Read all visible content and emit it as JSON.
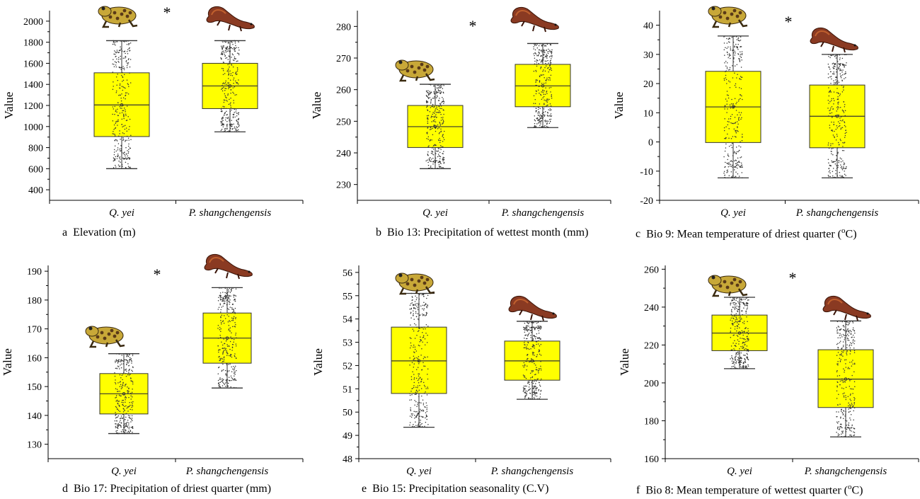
{
  "chart_data": [
    {
      "type": "box",
      "panel_letter": "a",
      "caption": "Elevation (m)",
      "caption_unit": "",
      "ylabel": "Value",
      "ylim": [
        300,
        2100
      ],
      "yticks": [
        "400",
        "600",
        "800",
        "1000",
        "1200",
        "1400",
        "1600",
        "1800",
        "2000"
      ],
      "significant": true,
      "significance_marker": "*",
      "categories": [
        "Q. yei",
        "P. shangchengensis"
      ],
      "boxes": [
        {
          "min": 600,
          "q1": 905,
          "median": 1205,
          "mean": 1205,
          "q3": 1510,
          "max": 1815,
          "icon": "frog-icon"
        },
        {
          "min": 950,
          "q1": 1170,
          "median": 1385,
          "mean": 1385,
          "q3": 1600,
          "max": 1815,
          "icon": "salamander-icon"
        }
      ]
    },
    {
      "type": "box",
      "panel_letter": "b",
      "caption": "Bio 13: Precipitation of wettest month (mm)",
      "caption_unit": "",
      "ylabel": "Value",
      "ylim": [
        225,
        285
      ],
      "yticks": [
        "230",
        "240",
        "250",
        "260",
        "270",
        "280"
      ],
      "significant": true,
      "significance_marker": "*",
      "categories": [
        "Q. yei",
        "P. shangchengensis"
      ],
      "boxes": [
        {
          "min": 235,
          "q1": 241.7,
          "median": 248.3,
          "mean": 248.3,
          "q3": 255,
          "max": 261.7,
          "icon": "frog-icon"
        },
        {
          "min": 248,
          "q1": 254.6,
          "median": 261.2,
          "mean": 261.2,
          "q3": 268,
          "max": 274.6,
          "icon": "salamander-icon"
        }
      ]
    },
    {
      "type": "box",
      "panel_letter": "c",
      "caption": "Bio 9: Mean temperature of driest quarter (",
      "caption_unit": "oC)",
      "ylabel": "Value",
      "ylim": [
        -20,
        45
      ],
      "yticks": [
        "-20",
        "-10",
        "0",
        "10",
        "20",
        "30",
        "40"
      ],
      "significant": true,
      "significance_marker": "*",
      "categories": [
        "Q. yei",
        "P. shangchengensis"
      ],
      "boxes": [
        {
          "min": -12.3,
          "q1": -0.2,
          "median": 12,
          "mean": 12,
          "q3": 24.2,
          "max": 36.3,
          "icon": "frog-icon"
        },
        {
          "min": -12.3,
          "q1": -2,
          "median": 8.8,
          "mean": 8.8,
          "q3": 19.5,
          "max": 30,
          "icon": "salamander-icon"
        }
      ]
    },
    {
      "type": "box",
      "panel_letter": "d",
      "caption": "Bio 17: Precipitation of driest quarter (mm)",
      "caption_unit": "",
      "ylabel": "Value",
      "ylim": [
        125,
        192
      ],
      "yticks": [
        "130",
        "140",
        "150",
        "160",
        "170",
        "180",
        "190"
      ],
      "significant": true,
      "significance_marker": "*",
      "categories": [
        "Q. yei",
        "P. shangchengensis"
      ],
      "boxes": [
        {
          "min": 133.7,
          "q1": 140.5,
          "median": 147.5,
          "mean": 147.5,
          "q3": 154.5,
          "max": 161.4,
          "icon": "frog-icon"
        },
        {
          "min": 149.5,
          "q1": 158.1,
          "median": 166.8,
          "mean": 166.8,
          "q3": 175.5,
          "max": 184.3,
          "icon": "salamander-icon"
        }
      ]
    },
    {
      "type": "box",
      "panel_letter": "e",
      "caption": "Bio 15: Precipitation seasonality (C.V)",
      "caption_unit": "",
      "ylabel": "Value",
      "ylim": [
        48,
        56.3
      ],
      "yticks": [
        "48",
        "49",
        "50",
        "51",
        "52",
        "53",
        "54",
        "55",
        "56"
      ],
      "significant": false,
      "significance_marker": "",
      "categories": [
        "Q. yei",
        "P. shangchengensis"
      ],
      "boxes": [
        {
          "min": 49.35,
          "q1": 50.8,
          "median": 52.2,
          "mean": 52.2,
          "q3": 53.65,
          "max": 55.1,
          "icon": "frog-icon"
        },
        {
          "min": 50.55,
          "q1": 51.37,
          "median": 52.2,
          "mean": 52.2,
          "q3": 53.05,
          "max": 53.9,
          "icon": "salamander-icon"
        }
      ]
    },
    {
      "type": "box",
      "panel_letter": "f",
      "caption": "Bio 8: Mean temperature of wettest quarter (",
      "caption_unit": "oC)",
      "ylabel": "Value",
      "ylim": [
        160,
        262
      ],
      "yticks": [
        "160",
        "180",
        "200",
        "220",
        "240",
        "260"
      ],
      "significant": true,
      "significance_marker": "*",
      "categories": [
        "Q. yei",
        "P. shangchengensis"
      ],
      "boxes": [
        {
          "min": 207.5,
          "q1": 217,
          "median": 226.3,
          "mean": 226.3,
          "q3": 235.8,
          "max": 245.2,
          "icon": "frog-icon"
        },
        {
          "min": 171.5,
          "q1": 187,
          "median": 202,
          "mean": 202,
          "q3": 217.5,
          "max": 232.7,
          "icon": "salamander-icon"
        }
      ]
    }
  ],
  "colors": {
    "box_fill": "#ffff00",
    "box_stroke": "#333333",
    "points": "#333333",
    "frog_body": "#c8a838",
    "frog_spots": "#5a3a18",
    "salamander_body": "#8a3a22",
    "salamander_belly": "#c0602e"
  }
}
